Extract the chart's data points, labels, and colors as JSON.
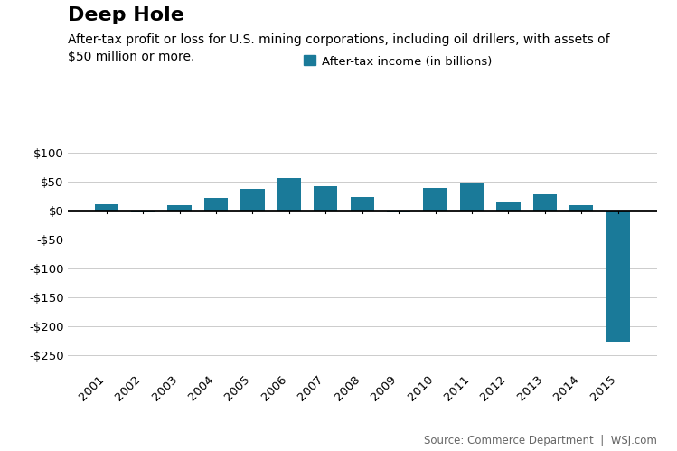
{
  "title": "Deep Hole",
  "subtitle": "After-tax profit or loss for U.S. mining corporations, including oil drillers, with assets of\n$50 million or more.",
  "legend_label": "After-tax income (in billions)",
  "source": "Source: Commerce Department  |  WSJ.com",
  "years": [
    "2001",
    "2002",
    "2003",
    "2004",
    "2005",
    "2006",
    "2007",
    "2008",
    "2009",
    "2010",
    "2011",
    "2012",
    "2013",
    "2014",
    "2015"
  ],
  "values": [
    11,
    -2,
    10,
    22,
    38,
    57,
    43,
    24,
    -3,
    39,
    49,
    16,
    29,
    10,
    -227
  ],
  "bar_color": "#1a7a99",
  "background_color": "#ffffff",
  "ylim": [
    -275,
    115
  ],
  "yticks": [
    100,
    50,
    0,
    -50,
    -100,
    -150,
    -200,
    -250
  ],
  "ytick_labels": [
    "$100",
    "$50",
    "$0",
    "-$50",
    "-$100",
    "-$150",
    "-$200",
    "-$250"
  ],
  "title_fontsize": 16,
  "subtitle_fontsize": 10,
  "tick_fontsize": 9.5,
  "source_fontsize": 8.5,
  "legend_fontsize": 9.5
}
